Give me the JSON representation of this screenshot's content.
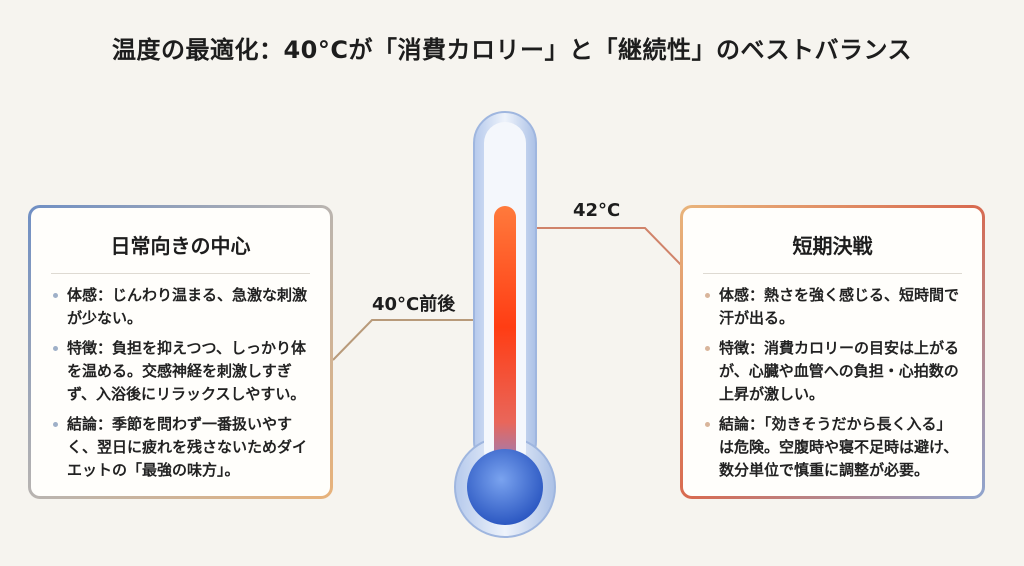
{
  "title": "温度の最適化：40°Cが「消費カロリー」と「継続性」のベストバランス",
  "thermometer": {
    "label_low": "40°C前後",
    "label_high": "42°C",
    "colors": {
      "cool": "#3f6fd1",
      "hot": "#ff4a1c",
      "glass": "#b9cdec"
    }
  },
  "left_card": {
    "heading": "日常向きの中心",
    "items": [
      "体感：じんわり温まる、急激な刺激が少ない。",
      "特徴：負担を抑えつつ、しっかり体を温める。交感神経を刺激しすぎず、入浴後にリラックスしやすい。",
      "結論：季節を問わず一番扱いやすく、翌日に疲れを残さないためダイエットの「最強の味方」。"
    ]
  },
  "right_card": {
    "heading": "短期決戦",
    "items": [
      "体感：熱さを強く感じる、短時間で汗が出る。",
      "特徴：消費カロリーの目安は上がるが、心臓や血管への負担・心拍数の上昇が激しい。",
      "結論：「効きそうだから長く入る」は危険。空腹時や寝不足時は避け、数分単位で慎重に調整が必要。"
    ]
  }
}
